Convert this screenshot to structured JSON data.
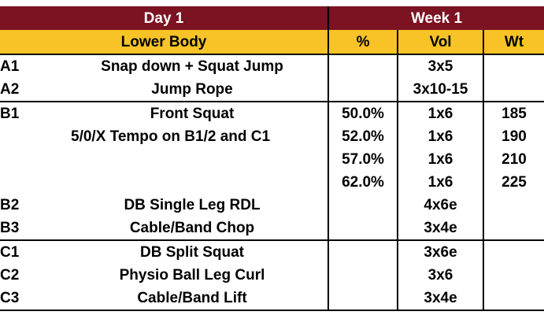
{
  "header": {
    "day": "Day 1",
    "week": "Week 1",
    "focus": "Lower Body",
    "col_pct": "%",
    "col_vol": "Vol",
    "col_wt": "Wt"
  },
  "rows": [
    {
      "id": "A1",
      "exercise": "Snap down + Squat Jump",
      "pct": "",
      "vol": "3x5",
      "wt": ""
    },
    {
      "id": "A2",
      "exercise": "Jump Rope",
      "pct": "",
      "vol": "3x10-15",
      "wt": ""
    },
    {
      "id": "B1",
      "exercise": "Front Squat",
      "pct": "50.0%",
      "vol": "1x6",
      "wt": "185"
    },
    {
      "id": "",
      "exercise": "5/0/X Tempo on B1/2 and C1",
      "pct": "52.0%",
      "vol": "1x6",
      "wt": "190"
    },
    {
      "id": "",
      "exercise": "",
      "pct": "57.0%",
      "vol": "1x6",
      "wt": "210"
    },
    {
      "id": "",
      "exercise": "",
      "pct": "62.0%",
      "vol": "1x6",
      "wt": "225"
    },
    {
      "id": "B2",
      "exercise": "DB Single Leg RDL",
      "pct": "",
      "vol": "4x6e",
      "wt": ""
    },
    {
      "id": "B3",
      "exercise": "Cable/Band Chop",
      "pct": "",
      "vol": "3x4e",
      "wt": ""
    },
    {
      "id": "C1",
      "exercise": "DB Split Squat",
      "pct": "",
      "vol": "3x6e",
      "wt": ""
    },
    {
      "id": "C2",
      "exercise": "Physio Ball Leg Curl",
      "pct": "",
      "vol": "3x6",
      "wt": ""
    },
    {
      "id": "C3",
      "exercise": "Cable/Band Lift",
      "pct": "",
      "vol": "3x4e",
      "wt": ""
    }
  ],
  "colors": {
    "header_maroon": "#7b1323",
    "header_gold": "#f7c327"
  }
}
